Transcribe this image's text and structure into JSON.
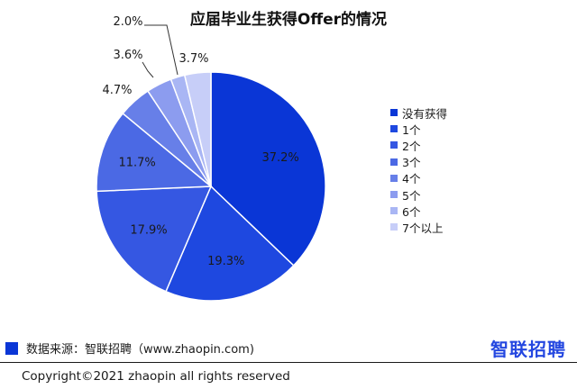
{
  "title": "应届毕业生获得Offer的情况",
  "chart_data": {
    "type": "pie",
    "title": "应届毕业生获得Offer的情况",
    "categories": [
      "没有获得",
      "1个",
      "2个",
      "3个",
      "4个",
      "5个",
      "6个",
      "7个以上"
    ],
    "values": [
      37.2,
      19.3,
      17.9,
      11.7,
      4.7,
      3.6,
      2.0,
      3.7
    ],
    "value_labels": [
      "37.2%",
      "19.3%",
      "17.9%",
      "11.7%",
      "4.7%",
      "3.6%",
      "2.0%",
      "3.7%"
    ],
    "colors": [
      "#0a36d6",
      "#1e48e0",
      "#3557e2",
      "#4b69e4",
      "#677fe8",
      "#8c9cef",
      "#a9b6f4",
      "#c7cef8"
    ],
    "legend_position": "right"
  },
  "footer": {
    "source": "数据来源：智联招聘（www.zhaopin.com)",
    "logo": "智联招聘",
    "copyright": "Copyright©2021 zhaopin all rights reserved"
  }
}
